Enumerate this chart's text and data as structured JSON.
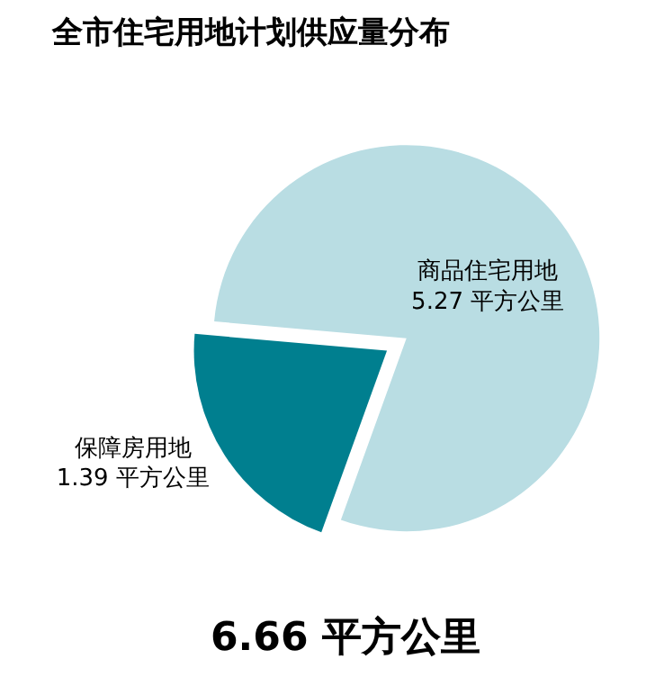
{
  "chart_data": {
    "type": "pie",
    "title": "全市住宅用地计划供应量分布",
    "categories": [
      "商品住宅用地",
      "保障房用地"
    ],
    "values": [
      5.27,
      1.39
    ],
    "value_labels": [
      "5.27 平方公里",
      "1.39 平方公里"
    ],
    "colors": [
      "#b9dde3",
      "#007f8f"
    ],
    "annotations": [
      "6.66 平方公里"
    ]
  }
}
